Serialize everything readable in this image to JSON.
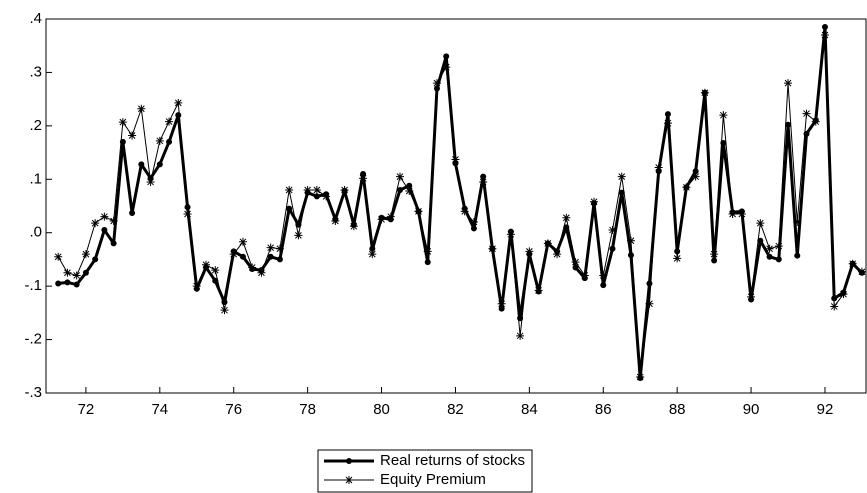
{
  "chart_data": {
    "type": "line",
    "x": [
      71.25,
      71.5,
      71.75,
      72,
      72.25,
      72.5,
      72.75,
      73,
      73.25,
      73.5,
      73.75,
      74,
      74.25,
      74.5,
      74.75,
      75,
      75.25,
      75.5,
      75.75,
      76,
      76.25,
      76.5,
      76.75,
      77,
      77.25,
      77.5,
      77.75,
      78,
      78.25,
      78.5,
      78.75,
      79,
      79.25,
      79.5,
      79.75,
      80,
      80.25,
      80.5,
      80.75,
      81,
      81.25,
      81.5,
      81.75,
      82,
      82.25,
      82.5,
      82.75,
      83,
      83.25,
      83.5,
      83.75,
      84,
      84.25,
      84.5,
      84.75,
      85,
      85.25,
      85.5,
      85.75,
      86,
      86.25,
      86.5,
      86.75,
      87,
      87.25,
      87.5,
      87.75,
      88,
      88.25,
      88.5,
      88.75,
      89,
      89.25,
      89.5,
      89.75,
      90,
      90.25,
      90.5,
      90.75,
      91,
      91.25,
      91.5,
      91.75,
      92,
      92.25,
      92.5,
      92.75,
      93
    ],
    "series": [
      {
        "name": "Real returns of stocks",
        "color": "#000000",
        "marker": "circle",
        "width": 3,
        "values": [
          -0.095,
          -0.093,
          -0.097,
          -0.075,
          -0.05,
          0.005,
          -0.02,
          0.17,
          0.037,
          0.128,
          0.102,
          0.128,
          0.17,
          0.22,
          0.048,
          -0.105,
          -0.065,
          -0.09,
          -0.13,
          -0.035,
          -0.045,
          -0.068,
          -0.07,
          -0.045,
          -0.05,
          0.045,
          0.015,
          0.075,
          0.068,
          0.072,
          0.025,
          0.078,
          0.015,
          0.11,
          -0.03,
          0.028,
          0.025,
          0.08,
          0.088,
          0.04,
          -0.055,
          0.27,
          0.33,
          0.13,
          0.045,
          0.008,
          0.105,
          -0.03,
          -0.142,
          0.002,
          -0.16,
          -0.04,
          -0.11,
          -0.02,
          -0.035,
          0.01,
          -0.065,
          -0.085,
          0.055,
          -0.098,
          -0.03,
          0.075,
          -0.042,
          -0.272,
          -0.095,
          0.115,
          0.222,
          -0.035,
          0.085,
          0.115,
          0.262,
          -0.052,
          0.168,
          0.038,
          0.04,
          -0.125,
          -0.015,
          -0.045,
          -0.05,
          0.202,
          -0.043,
          0.185,
          0.21,
          0.385,
          -0.123,
          -0.112,
          -0.058,
          -0.075
        ]
      },
      {
        "name": "Equity Premium",
        "color": "#000000",
        "marker": "star",
        "width": 1,
        "values": [
          -0.045,
          -0.075,
          -0.08,
          -0.04,
          0.018,
          0.03,
          0.022,
          0.207,
          0.182,
          0.232,
          0.095,
          0.172,
          0.208,
          0.243,
          0.035,
          -0.1,
          -0.06,
          -0.07,
          -0.145,
          -0.04,
          -0.017,
          -0.065,
          -0.075,
          -0.028,
          -0.03,
          0.08,
          -0.005,
          0.08,
          0.08,
          0.068,
          0.022,
          0.08,
          0.012,
          0.102,
          -0.04,
          0.025,
          0.03,
          0.105,
          0.078,
          0.04,
          -0.035,
          0.28,
          0.31,
          0.137,
          0.04,
          0.02,
          0.095,
          -0.03,
          -0.133,
          -0.003,
          -0.193,
          -0.035,
          -0.108,
          -0.02,
          -0.04,
          0.028,
          -0.055,
          -0.08,
          0.058,
          -0.08,
          0.005,
          0.105,
          -0.015,
          -0.27,
          -0.133,
          0.122,
          0.205,
          -0.048,
          0.085,
          0.105,
          0.262,
          -0.04,
          0.22,
          0.035,
          0.035,
          -0.12,
          0.018,
          -0.03,
          -0.025,
          0.28,
          0.02,
          0.223,
          0.208,
          0.37,
          -0.138,
          -0.115,
          -0.058,
          -0.073
        ]
      }
    ],
    "xlim": [
      70.92,
      93.11
    ],
    "xticks": [
      72,
      74,
      76,
      78,
      80,
      82,
      84,
      86,
      88,
      90,
      92
    ],
    "ylim": [
      -0.3,
      0.4
    ],
    "yticks": [
      {
        "value": -0.3,
        "label": "-.3"
      },
      {
        "value": -0.2,
        "label": "-.2"
      },
      {
        "value": -0.1,
        "label": "-.1"
      },
      {
        "value": 0,
        "label": ".0"
      },
      {
        "value": 0.1,
        "label": ".1"
      },
      {
        "value": 0.2,
        "label": ".2"
      },
      {
        "value": 0.3,
        "label": ".3"
      },
      {
        "value": 0.4,
        "label": ".4"
      }
    ],
    "legend": "bottom"
  }
}
